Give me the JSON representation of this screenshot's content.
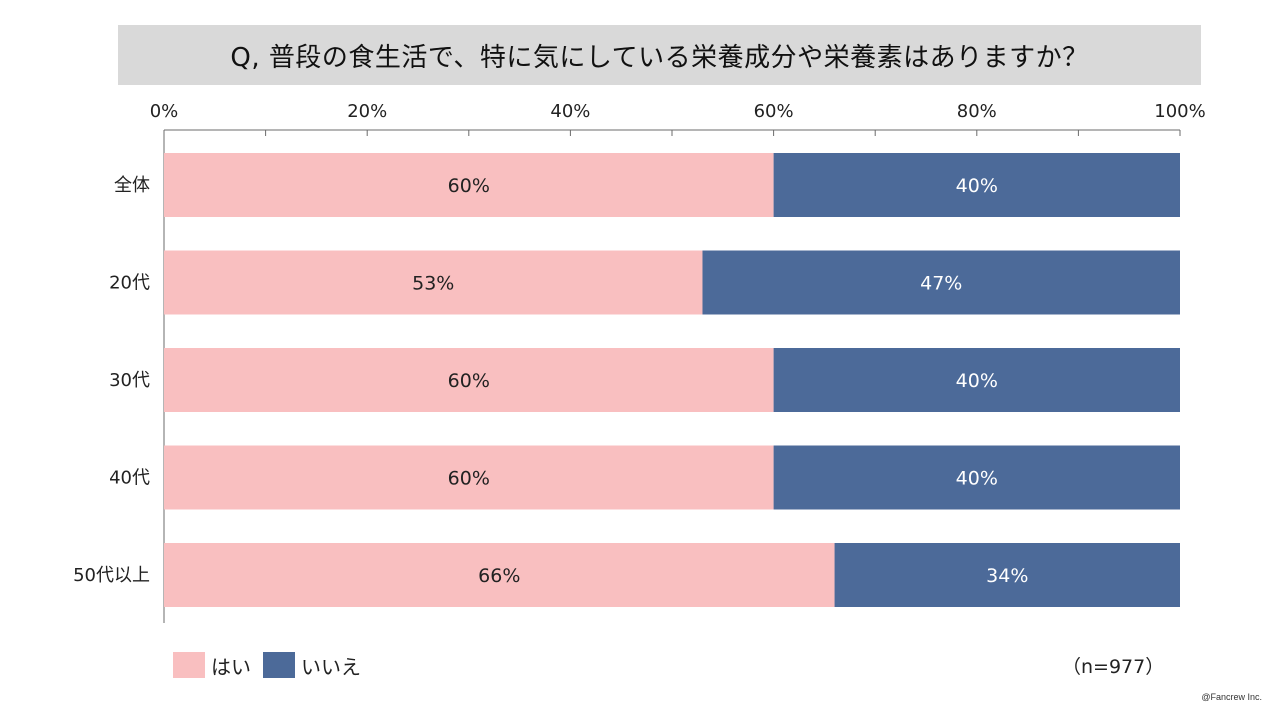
{
  "chart_data": {
    "type": "bar",
    "orientation": "horizontal",
    "stacked": true,
    "title": "Q, 普段の食生活で、特に気にしている栄養成分や栄養素はありますか？",
    "categories": [
      "全体",
      "20代",
      "30代",
      "40代",
      "50代以上"
    ],
    "series": [
      {
        "name": "はい",
        "color": "#f9bfc0",
        "values": [
          60,
          53,
          60,
          60,
          66
        ],
        "labels": [
          "60%",
          "53%",
          "60%",
          "60%",
          "66%"
        ]
      },
      {
        "name": "いいえ",
        "color": "#4c6a99",
        "values": [
          40,
          47,
          40,
          40,
          34
        ],
        "labels": [
          "40%",
          "47%",
          "40%",
          "40%",
          "34%"
        ]
      }
    ],
    "xlim": [
      0,
      100
    ],
    "ticks": [
      0,
      20,
      40,
      60,
      80,
      100
    ],
    "tick_labels": [
      "0%",
      "20%",
      "40%",
      "60%",
      "80%",
      "100%"
    ],
    "axis_position": "top",
    "legend_position": "bottom-left",
    "grid": false
  },
  "sample_size": "（n=977）",
  "copyright": "@Fancrew Inc."
}
